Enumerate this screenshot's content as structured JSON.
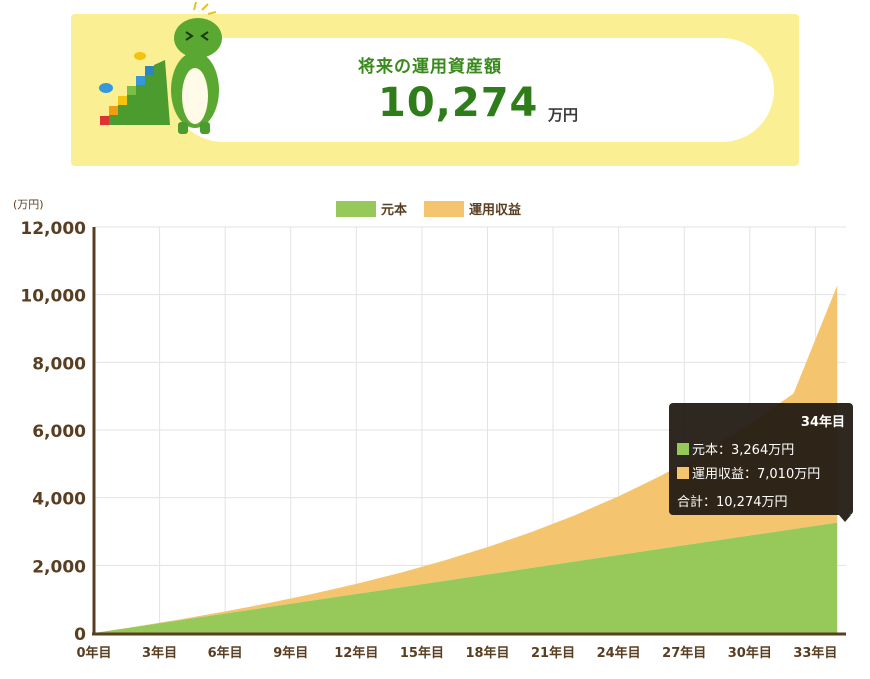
{
  "banner": {
    "title": "将来の運用資産額",
    "amount": "10,274",
    "unit": "万円"
  },
  "tooltip": {
    "title": "34年目",
    "principal_label": "元本：3,264万円",
    "profit_label": "運用収益：7,010万円",
    "total_label": "合計：10,274万円"
  },
  "colors": {
    "principal": "#96c85a",
    "profit": "#f5c46e",
    "axis": "#5a3e22",
    "text": "#5a3e22",
    "accent": "#2f7d1a"
  },
  "chart_data": {
    "type": "area",
    "stacked": true,
    "ylabel": "(万円)",
    "ylim": [
      0,
      12000
    ],
    "yticks": [
      "0",
      "2,000",
      "4,000",
      "6,000",
      "8,000",
      "10,000",
      "12,000"
    ],
    "xticks": [
      "0年目",
      "3年目",
      "6年目",
      "9年目",
      "12年目",
      "15年目",
      "18年目",
      "21年目",
      "24年目",
      "27年目",
      "30年目",
      "33年目"
    ],
    "x": [
      0,
      2,
      4,
      6,
      8,
      10,
      12,
      14,
      16,
      18,
      20,
      22,
      24,
      26,
      28,
      30,
      32,
      34
    ],
    "legend_position": "top",
    "series": [
      {
        "name": "元本",
        "values": [
          0,
          192,
          384,
          576,
          768,
          960,
          1152,
          1344,
          1536,
          1728,
          1920,
          2112,
          2304,
          2496,
          2688,
          2880,
          3072,
          3264
        ]
      },
      {
        "name": "運用収益",
        "values": [
          0,
          6,
          26,
          62,
          118,
          196,
          300,
          434,
          602,
          810,
          1063,
          1370,
          1737,
          2174,
          2690,
          3296,
          4006,
          7010
        ]
      }
    ]
  }
}
